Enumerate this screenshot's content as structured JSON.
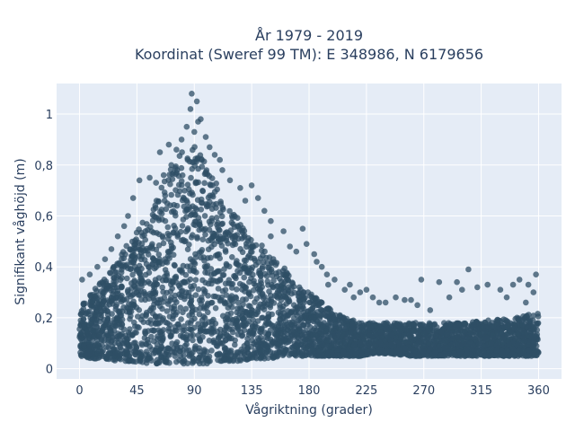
{
  "chart_data": {
    "type": "scatter",
    "title": [
      "År 1979 - 2019",
      "Koordinat (Sweref 99 TM): E 348986, N 6179656"
    ],
    "xlabel": "Vågriktning (grader)",
    "ylabel": "Signifikant våghöjd (m)",
    "xlim": [
      -18,
      378
    ],
    "ylim": [
      -0.04,
      1.12
    ],
    "xticks": [
      0,
      45,
      90,
      135,
      180,
      225,
      270,
      315,
      360
    ],
    "xtick_labels": [
      "0",
      "45",
      "90",
      "135",
      "180",
      "225",
      "270",
      "315",
      "360"
    ],
    "yticks": [
      0,
      0.2,
      0.4,
      0.6,
      0.8,
      1
    ],
    "ytick_labels": [
      "0",
      "0,2",
      "0,4",
      "0,6",
      "0,8",
      "1"
    ],
    "grid": true,
    "colors": {
      "plot_bg": "#e5ecf6",
      "grid": "#ffffff",
      "marker": "#2f4f66",
      "text": "#2a3f5f"
    },
    "envelope": {
      "x": [
        0,
        10,
        20,
        30,
        40,
        50,
        60,
        70,
        80,
        90,
        100,
        110,
        120,
        130,
        140,
        150,
        160,
        170,
        180,
        190,
        200,
        210,
        220,
        230,
        240,
        260,
        280,
        300,
        320,
        340,
        360
      ],
      "y_min": [
        0.05,
        0.04,
        0.04,
        0.03,
        0.03,
        0.02,
        0.02,
        0.02,
        0.02,
        0.02,
        0.02,
        0.03,
        0.03,
        0.03,
        0.04,
        0.04,
        0.05,
        0.05,
        0.05,
        0.05,
        0.05,
        0.05,
        0.05,
        0.06,
        0.06,
        0.05,
        0.05,
        0.05,
        0.05,
        0.05,
        0.05
      ],
      "y_max": [
        0.26,
        0.3,
        0.36,
        0.44,
        0.52,
        0.58,
        0.66,
        0.78,
        0.86,
        0.88,
        0.8,
        0.7,
        0.62,
        0.55,
        0.5,
        0.45,
        0.4,
        0.34,
        0.3,
        0.26,
        0.22,
        0.2,
        0.18,
        0.18,
        0.18,
        0.18,
        0.18,
        0.18,
        0.19,
        0.2,
        0.22
      ]
    },
    "outliers": [
      [
        88,
        1.08
      ],
      [
        92,
        1.05
      ],
      [
        87,
        1.02
      ],
      [
        95,
        0.98
      ],
      [
        84,
        0.95
      ],
      [
        90,
        0.93
      ],
      [
        80,
        0.9
      ],
      [
        99,
        0.91
      ],
      [
        76,
        0.86
      ],
      [
        102,
        0.87
      ],
      [
        72,
        0.8
      ],
      [
        106,
        0.84
      ],
      [
        66,
        0.76
      ],
      [
        112,
        0.78
      ],
      [
        60,
        0.73
      ],
      [
        118,
        0.74
      ],
      [
        55,
        0.75
      ],
      [
        126,
        0.71
      ],
      [
        135,
        0.72
      ],
      [
        140,
        0.67
      ],
      [
        145,
        0.62
      ],
      [
        150,
        0.58
      ],
      [
        160,
        0.54
      ],
      [
        165,
        0.48
      ],
      [
        175,
        0.55
      ],
      [
        178,
        0.49
      ],
      [
        184,
        0.45
      ],
      [
        186,
        0.42
      ],
      [
        190,
        0.4
      ],
      [
        194,
        0.37
      ],
      [
        200,
        0.35
      ],
      [
        208,
        0.31
      ],
      [
        212,
        0.33
      ],
      [
        220,
        0.3
      ],
      [
        225,
        0.31
      ],
      [
        230,
        0.28
      ],
      [
        240,
        0.26
      ],
      [
        248,
        0.28
      ],
      [
        255,
        0.27
      ],
      [
        260,
        0.27
      ],
      [
        265,
        0.25
      ],
      [
        268,
        0.35
      ],
      [
        282,
        0.34
      ],
      [
        296,
        0.34
      ],
      [
        305,
        0.39
      ],
      [
        312,
        0.32
      ],
      [
        320,
        0.33
      ],
      [
        330,
        0.31
      ],
      [
        340,
        0.33
      ],
      [
        345,
        0.35
      ],
      [
        352,
        0.33
      ],
      [
        358,
        0.37
      ],
      [
        356,
        0.3
      ],
      [
        2,
        0.35
      ],
      [
        8,
        0.37
      ],
      [
        14,
        0.4
      ],
      [
        20,
        0.43
      ],
      [
        25,
        0.47
      ],
      [
        30,
        0.52
      ],
      [
        35,
        0.56
      ],
      [
        38,
        0.6
      ],
      [
        42,
        0.67
      ],
      [
        47,
        0.74
      ],
      [
        63,
        0.85
      ],
      [
        70,
        0.88
      ],
      [
        93,
        0.97
      ],
      [
        110,
        0.82
      ],
      [
        130,
        0.66
      ],
      [
        150,
        0.52
      ],
      [
        170,
        0.46
      ],
      [
        195,
        0.33
      ],
      [
        215,
        0.28
      ],
      [
        235,
        0.26
      ],
      [
        275,
        0.23
      ],
      [
        290,
        0.28
      ],
      [
        300,
        0.31
      ],
      [
        335,
        0.28
      ],
      [
        350,
        0.26
      ]
    ]
  }
}
